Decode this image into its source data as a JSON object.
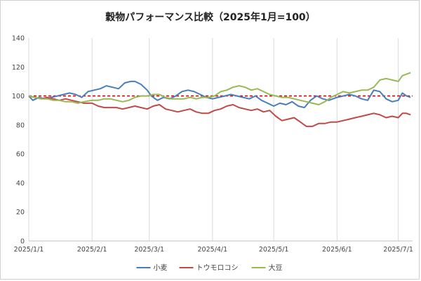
{
  "chart_data": {
    "type": "line",
    "title": "穀物パフォーマンス比較（2025年1月=100）",
    "xlabel": "",
    "ylabel": "",
    "ylim": [
      0,
      140
    ],
    "yticks": [
      0,
      20,
      40,
      60,
      80,
      100,
      120,
      140
    ],
    "xlim": [
      "2025-01-01",
      "2025-07-08"
    ],
    "xticks": [
      "2025-01-01",
      "2025-02-01",
      "2025-03-01",
      "2025-04-01",
      "2025-05-01",
      "2025-06-01",
      "2025-07-01"
    ],
    "xtick_labels": [
      "2025/1/1",
      "2025/2/1",
      "2025/3/1",
      "2025/4/1",
      "2025/5/1",
      "2025/6/1",
      "2025/7/1"
    ],
    "grid": "vertical",
    "legend_position": "bottom",
    "reference_line": {
      "y": 100,
      "color": "#e00000",
      "style": "dashed"
    },
    "series": [
      {
        "name": "小麦",
        "color": "#4a7ebb",
        "points": [
          [
            "2025-01-01",
            100
          ],
          [
            "2025-01-03",
            97
          ],
          [
            "2025-01-06",
            99
          ],
          [
            "2025-01-09",
            98
          ],
          [
            "2025-01-12",
            99
          ],
          [
            "2025-01-15",
            100
          ],
          [
            "2025-01-18",
            101
          ],
          [
            "2025-01-21",
            102
          ],
          [
            "2025-01-24",
            101
          ],
          [
            "2025-01-27",
            99
          ],
          [
            "2025-01-30",
            103
          ],
          [
            "2025-02-02",
            104
          ],
          [
            "2025-02-05",
            105
          ],
          [
            "2025-02-08",
            107
          ],
          [
            "2025-02-11",
            106
          ],
          [
            "2025-02-14",
            105
          ],
          [
            "2025-02-17",
            109
          ],
          [
            "2025-02-20",
            110
          ],
          [
            "2025-02-22",
            110
          ],
          [
            "2025-02-25",
            108
          ],
          [
            "2025-02-28",
            104
          ],
          [
            "2025-03-02",
            100
          ],
          [
            "2025-03-05",
            97
          ],
          [
            "2025-03-08",
            99
          ],
          [
            "2025-03-11",
            98
          ],
          [
            "2025-03-14",
            100
          ],
          [
            "2025-03-17",
            103
          ],
          [
            "2025-03-20",
            104
          ],
          [
            "2025-03-23",
            103
          ],
          [
            "2025-03-26",
            101
          ],
          [
            "2025-03-29",
            99
          ],
          [
            "2025-04-01",
            98
          ],
          [
            "2025-04-04",
            99
          ],
          [
            "2025-04-07",
            100
          ],
          [
            "2025-04-10",
            101
          ],
          [
            "2025-04-13",
            100
          ],
          [
            "2025-04-16",
            99
          ],
          [
            "2025-04-19",
            98
          ],
          [
            "2025-04-22",
            100
          ],
          [
            "2025-04-25",
            97
          ],
          [
            "2025-04-28",
            95
          ],
          [
            "2025-05-01",
            93
          ],
          [
            "2025-05-04",
            95
          ],
          [
            "2025-05-07",
            94
          ],
          [
            "2025-05-10",
            96
          ],
          [
            "2025-05-13",
            93
          ],
          [
            "2025-05-16",
            92
          ],
          [
            "2025-05-19",
            97
          ],
          [
            "2025-05-22",
            100
          ],
          [
            "2025-05-25",
            98
          ],
          [
            "2025-05-28",
            97
          ],
          [
            "2025-06-01",
            99
          ],
          [
            "2025-06-04",
            100
          ],
          [
            "2025-06-07",
            101
          ],
          [
            "2025-06-10",
            100
          ],
          [
            "2025-06-13",
            98
          ],
          [
            "2025-06-16",
            97
          ],
          [
            "2025-06-19",
            104
          ],
          [
            "2025-06-22",
            103
          ],
          [
            "2025-06-25",
            98
          ],
          [
            "2025-06-28",
            96
          ],
          [
            "2025-07-01",
            97
          ],
          [
            "2025-07-03",
            102
          ],
          [
            "2025-07-05",
            100
          ],
          [
            "2025-07-07",
            99
          ]
        ]
      },
      {
        "name": "トウモロコシ",
        "color": "#be4b48",
        "points": [
          [
            "2025-01-01",
            100
          ],
          [
            "2025-01-04",
            99
          ],
          [
            "2025-01-07",
            98
          ],
          [
            "2025-01-10",
            99
          ],
          [
            "2025-01-13",
            98
          ],
          [
            "2025-01-16",
            97
          ],
          [
            "2025-01-19",
            98
          ],
          [
            "2025-01-22",
            97
          ],
          [
            "2025-01-25",
            96
          ],
          [
            "2025-01-28",
            95
          ],
          [
            "2025-02-01",
            95
          ],
          [
            "2025-02-04",
            93
          ],
          [
            "2025-02-07",
            92
          ],
          [
            "2025-02-10",
            92
          ],
          [
            "2025-02-13",
            92
          ],
          [
            "2025-02-16",
            91
          ],
          [
            "2025-02-19",
            92
          ],
          [
            "2025-02-22",
            93
          ],
          [
            "2025-02-25",
            92
          ],
          [
            "2025-02-28",
            91
          ],
          [
            "2025-03-03",
            93
          ],
          [
            "2025-03-06",
            94
          ],
          [
            "2025-03-09",
            91
          ],
          [
            "2025-03-12",
            90
          ],
          [
            "2025-03-15",
            89
          ],
          [
            "2025-03-18",
            90
          ],
          [
            "2025-03-21",
            91
          ],
          [
            "2025-03-24",
            89
          ],
          [
            "2025-03-27",
            88
          ],
          [
            "2025-03-30",
            88
          ],
          [
            "2025-04-02",
            90
          ],
          [
            "2025-04-05",
            91
          ],
          [
            "2025-04-08",
            93
          ],
          [
            "2025-04-11",
            94
          ],
          [
            "2025-04-14",
            92
          ],
          [
            "2025-04-17",
            91
          ],
          [
            "2025-04-20",
            90
          ],
          [
            "2025-04-23",
            91
          ],
          [
            "2025-04-26",
            89
          ],
          [
            "2025-04-29",
            90
          ],
          [
            "2025-05-02",
            86
          ],
          [
            "2025-05-05",
            83
          ],
          [
            "2025-05-08",
            84
          ],
          [
            "2025-05-11",
            85
          ],
          [
            "2025-05-14",
            82
          ],
          [
            "2025-05-17",
            79
          ],
          [
            "2025-05-20",
            79
          ],
          [
            "2025-05-23",
            81
          ],
          [
            "2025-05-26",
            81
          ],
          [
            "2025-05-29",
            82
          ],
          [
            "2025-06-01",
            82
          ],
          [
            "2025-06-04",
            83
          ],
          [
            "2025-06-07",
            84
          ],
          [
            "2025-06-10",
            85
          ],
          [
            "2025-06-13",
            86
          ],
          [
            "2025-06-16",
            87
          ],
          [
            "2025-06-19",
            88
          ],
          [
            "2025-06-22",
            87
          ],
          [
            "2025-06-25",
            85
          ],
          [
            "2025-06-28",
            86
          ],
          [
            "2025-07-01",
            85
          ],
          [
            "2025-07-03",
            88
          ],
          [
            "2025-07-05",
            88
          ],
          [
            "2025-07-07",
            87
          ]
        ]
      },
      {
        "name": "大豆",
        "color": "#98b954",
        "points": [
          [
            "2025-01-01",
            100
          ],
          [
            "2025-01-04",
            99
          ],
          [
            "2025-01-07",
            98
          ],
          [
            "2025-01-10",
            98
          ],
          [
            "2025-01-13",
            97
          ],
          [
            "2025-01-16",
            97
          ],
          [
            "2025-01-19",
            96
          ],
          [
            "2025-01-22",
            96
          ],
          [
            "2025-01-25",
            95
          ],
          [
            "2025-01-28",
            96
          ],
          [
            "2025-02-01",
            97
          ],
          [
            "2025-02-04",
            97
          ],
          [
            "2025-02-07",
            98
          ],
          [
            "2025-02-10",
            98
          ],
          [
            "2025-02-13",
            97
          ],
          [
            "2025-02-16",
            96
          ],
          [
            "2025-02-19",
            97
          ],
          [
            "2025-02-22",
            99
          ],
          [
            "2025-02-25",
            100
          ],
          [
            "2025-02-28",
            100
          ],
          [
            "2025-03-03",
            101
          ],
          [
            "2025-03-06",
            101
          ],
          [
            "2025-03-09",
            99
          ],
          [
            "2025-03-12",
            98
          ],
          [
            "2025-03-15",
            98
          ],
          [
            "2025-03-18",
            98
          ],
          [
            "2025-03-21",
            99
          ],
          [
            "2025-03-24",
            98
          ],
          [
            "2025-03-27",
            99
          ],
          [
            "2025-03-30",
            99
          ],
          [
            "2025-04-02",
            100
          ],
          [
            "2025-04-05",
            103
          ],
          [
            "2025-04-08",
            104
          ],
          [
            "2025-04-11",
            106
          ],
          [
            "2025-04-14",
            107
          ],
          [
            "2025-04-17",
            106
          ],
          [
            "2025-04-20",
            104
          ],
          [
            "2025-04-23",
            105
          ],
          [
            "2025-04-26",
            103
          ],
          [
            "2025-04-29",
            101
          ],
          [
            "2025-05-02",
            100
          ],
          [
            "2025-05-05",
            99
          ],
          [
            "2025-05-08",
            99
          ],
          [
            "2025-05-11",
            98
          ],
          [
            "2025-05-14",
            97
          ],
          [
            "2025-05-17",
            96
          ],
          [
            "2025-05-20",
            95
          ],
          [
            "2025-05-23",
            94
          ],
          [
            "2025-05-26",
            96
          ],
          [
            "2025-05-29",
            99
          ],
          [
            "2025-06-01",
            101
          ],
          [
            "2025-06-04",
            103
          ],
          [
            "2025-06-07",
            102
          ],
          [
            "2025-06-10",
            103
          ],
          [
            "2025-06-13",
            104
          ],
          [
            "2025-06-16",
            104
          ],
          [
            "2025-06-19",
            106
          ],
          [
            "2025-06-22",
            111
          ],
          [
            "2025-06-25",
            112
          ],
          [
            "2025-06-28",
            111
          ],
          [
            "2025-07-01",
            110
          ],
          [
            "2025-07-03",
            114
          ],
          [
            "2025-07-05",
            115
          ],
          [
            "2025-07-07",
            116
          ]
        ]
      }
    ]
  }
}
